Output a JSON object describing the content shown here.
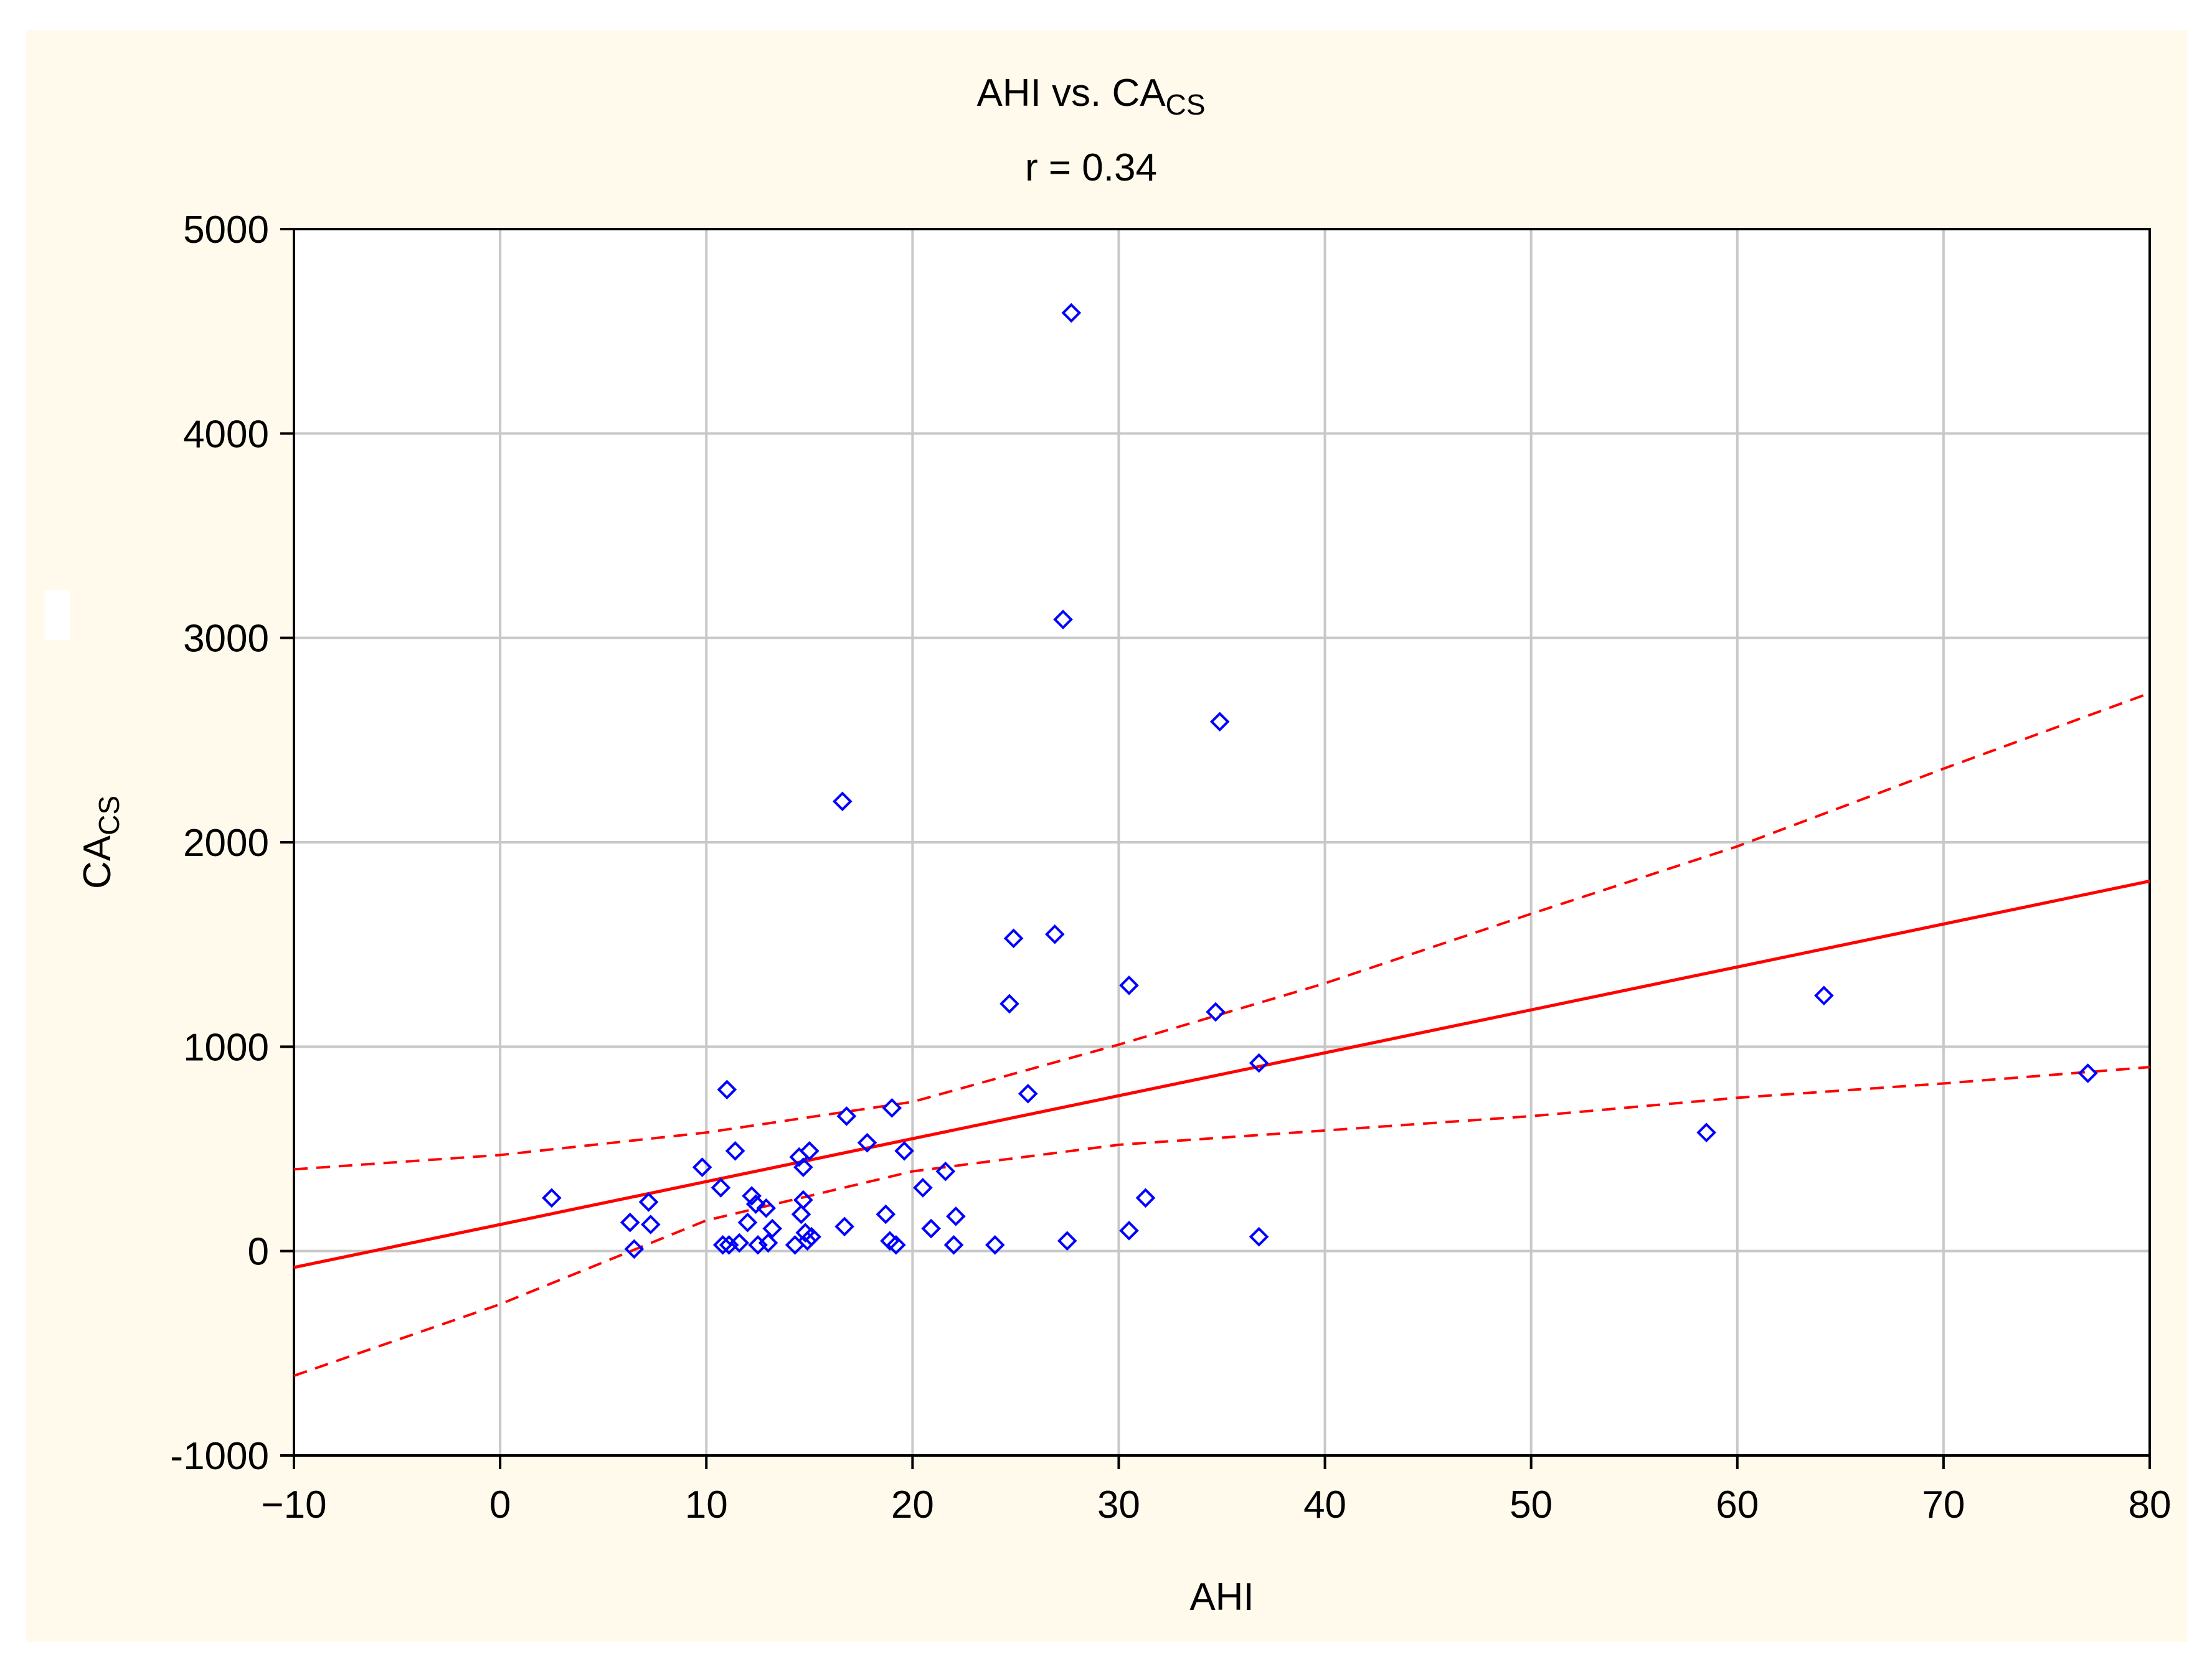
{
  "chart_data": {
    "type": "scatter",
    "title": "AHI vs. CA",
    "title_subscript": "CS",
    "subtitle": "r = 0.34",
    "xlabel": "AHI",
    "ylabel": "CA",
    "ylabel_subscript": "CS",
    "xlim": [
      -10,
      80
    ],
    "ylim": [
      -1000,
      5000
    ],
    "x_ticks": [
      -10,
      0,
      10,
      20,
      30,
      40,
      50,
      60,
      70,
      80
    ],
    "y_ticks": [
      -1000,
      0,
      1000,
      2000,
      3000,
      4000,
      5000
    ],
    "x_tick_labels": [
      "−10",
      "0",
      "10",
      "20",
      "30",
      "40",
      "50",
      "60",
      "70",
      "80"
    ],
    "y_tick_labels": [
      "-1000",
      "0",
      "1000",
      "2000",
      "3000",
      "4000",
      "5000"
    ],
    "grid": true,
    "colors": {
      "points": "#0000ff",
      "lines": "#ff0000",
      "frame_background": "#fffaeb",
      "plot_background": "#ffffff"
    },
    "regression": {
      "slope": 21,
      "intercept": 130
    },
    "confidence_band": {
      "x": [
        -10,
        0,
        10,
        20,
        30,
        40,
        50,
        60,
        70,
        80
      ],
      "upper": [
        400,
        470,
        580,
        730,
        1010,
        1310,
        1650,
        1980,
        2360,
        2730
      ],
      "lower": [
        -610,
        -260,
        150,
        390,
        520,
        590,
        660,
        750,
        820,
        900
      ]
    },
    "points": [
      {
        "x": 2.5,
        "y": 260
      },
      {
        "x": 6.3,
        "y": 140
      },
      {
        "x": 6.5,
        "y": 10
      },
      {
        "x": 7.2,
        "y": 240
      },
      {
        "x": 7.3,
        "y": 130
      },
      {
        "x": 9.8,
        "y": 410
      },
      {
        "x": 10.7,
        "y": 310
      },
      {
        "x": 10.8,
        "y": 30
      },
      {
        "x": 11.0,
        "y": 790
      },
      {
        "x": 11.1,
        "y": 30
      },
      {
        "x": 11.4,
        "y": 490
      },
      {
        "x": 11.6,
        "y": 40
      },
      {
        "x": 12.0,
        "y": 140
      },
      {
        "x": 12.2,
        "y": 270
      },
      {
        "x": 12.4,
        "y": 230
      },
      {
        "x": 12.5,
        "y": 30
      },
      {
        "x": 12.9,
        "y": 210
      },
      {
        "x": 13.0,
        "y": 40
      },
      {
        "x": 13.2,
        "y": 110
      },
      {
        "x": 14.3,
        "y": 30
      },
      {
        "x": 14.5,
        "y": 460
      },
      {
        "x": 14.6,
        "y": 180
      },
      {
        "x": 14.7,
        "y": 410
      },
      {
        "x": 14.7,
        "y": 250
      },
      {
        "x": 14.8,
        "y": 90
      },
      {
        "x": 14.9,
        "y": 50
      },
      {
        "x": 15.0,
        "y": 490
      },
      {
        "x": 15.1,
        "y": 70
      },
      {
        "x": 16.6,
        "y": 2200
      },
      {
        "x": 16.7,
        "y": 120
      },
      {
        "x": 16.8,
        "y": 660
      },
      {
        "x": 17.8,
        "y": 530
      },
      {
        "x": 18.7,
        "y": 180
      },
      {
        "x": 18.9,
        "y": 50
      },
      {
        "x": 19.0,
        "y": 700
      },
      {
        "x": 19.2,
        "y": 30
      },
      {
        "x": 19.6,
        "y": 490
      },
      {
        "x": 20.5,
        "y": 310
      },
      {
        "x": 20.9,
        "y": 110
      },
      {
        "x": 21.6,
        "y": 390
      },
      {
        "x": 22.0,
        "y": 30
      },
      {
        "x": 22.1,
        "y": 170
      },
      {
        "x": 24.0,
        "y": 30
      },
      {
        "x": 24.7,
        "y": 1210
      },
      {
        "x": 24.9,
        "y": 1530
      },
      {
        "x": 25.6,
        "y": 770
      },
      {
        "x": 26.9,
        "y": 1550
      },
      {
        "x": 27.3,
        "y": 3090
      },
      {
        "x": 27.5,
        "y": 50
      },
      {
        "x": 27.7,
        "y": 4590
      },
      {
        "x": 30.5,
        "y": 1300
      },
      {
        "x": 30.5,
        "y": 100
      },
      {
        "x": 31.3,
        "y": 260
      },
      {
        "x": 34.7,
        "y": 1170
      },
      {
        "x": 34.9,
        "y": 2590
      },
      {
        "x": 36.8,
        "y": 920
      },
      {
        "x": 36.8,
        "y": 70
      },
      {
        "x": 58.5,
        "y": 580
      },
      {
        "x": 64.2,
        "y": 1250
      },
      {
        "x": 77.0,
        "y": 870
      }
    ]
  }
}
